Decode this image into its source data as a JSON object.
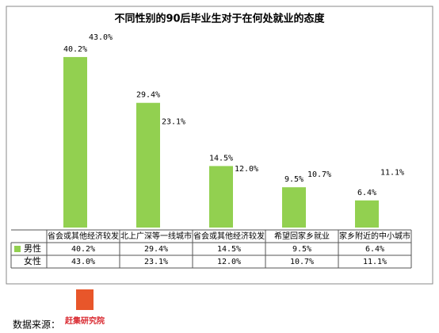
{
  "chart_data": {
    "type": "bar",
    "title": "不同性别的90后毕业生对于在何处就业的态度",
    "categories": [
      "省会或其他经济较发",
      "北上广深等一线城市",
      "省会或其他经济较发",
      "希望回家乡就业",
      "家乡附近的中小城市"
    ],
    "series": [
      {
        "name": "男性",
        "color": "#92d050",
        "values": [
          40.2,
          29.4,
          14.5,
          9.5,
          6.4
        ],
        "value_labels": [
          "40.2%",
          "29.4%",
          "14.5%",
          "9.5%",
          "6.4%"
        ]
      },
      {
        "name": "女性",
        "color": "#ffffff",
        "values": [
          43.0,
          23.1,
          12.0,
          10.7,
          11.1
        ],
        "value_labels": [
          "43.0%",
          "23.1%",
          "12.0%",
          "10.7%",
          "11.1%"
        ]
      }
    ]
  },
  "footer": {
    "source_label": "数据来源：",
    "logo_text": "赶集研究院"
  }
}
